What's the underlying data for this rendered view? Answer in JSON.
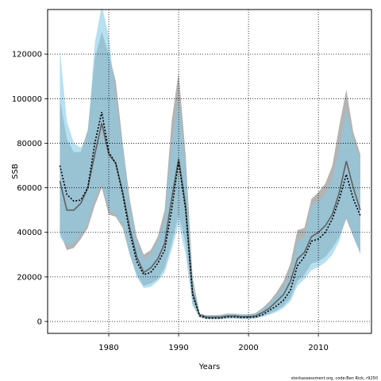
{
  "chart_data": {
    "type": "band-line",
    "xlabel": "Years",
    "ylabel": "SSB",
    "footnote": "stockassessment.org, code:Ben Rick, r9250",
    "x": [
      1973,
      1974,
      1975,
      1976,
      1977,
      1978,
      1979,
      1980,
      1981,
      1982,
      1983,
      1984,
      1985,
      1986,
      1987,
      1988,
      1989,
      1990,
      1991,
      1992,
      1993,
      1994,
      1995,
      1996,
      1997,
      1998,
      1999,
      2000,
      2001,
      2002,
      2003,
      2004,
      2005,
      2006,
      2007,
      2008,
      2009,
      2010,
      2011,
      2012,
      2013,
      2014,
      2015,
      2016
    ],
    "xlim": [
      1971.25,
      2017.6
    ],
    "ylim": [
      -5340,
      140000
    ],
    "xticks": [
      1980,
      1990,
      2000,
      2010
    ],
    "yticks": [
      0,
      20000,
      40000,
      60000,
      80000,
      100000,
      120000
    ],
    "grid": true,
    "bands": [
      {
        "color": "#8c8c8c",
        "opacity": 0.65,
        "upper": [
          100000,
          82000,
          76000,
          76000,
          86000,
          118000,
          130000,
          120000,
          108000,
          80000,
          55000,
          38000,
          30000,
          32000,
          38000,
          50000,
          90000,
          112000,
          75000,
          20000,
          3500,
          2800,
          2800,
          3000,
          3500,
          3500,
          3200,
          3200,
          3800,
          6000,
          9000,
          13000,
          18000,
          26000,
          41000,
          42000,
          55000,
          58000,
          62000,
          70000,
          88000,
          104000,
          85000,
          75000
        ],
        "lower": [
          40000,
          32000,
          33000,
          37000,
          42000,
          52000,
          60000,
          48000,
          47000,
          42000,
          30000,
          21000,
          16000,
          17000,
          19000,
          24000,
          35000,
          48000,
          35000,
          8000,
          2000,
          1200,
          1200,
          1200,
          1500,
          1500,
          1300,
          1300,
          1500,
          2500,
          3500,
          5000,
          7000,
          10500,
          18000,
          21000,
          26000,
          27000,
          29000,
          33000,
          38000,
          46000,
          38000,
          31000
        ]
      },
      {
        "color": "#87cbe8",
        "opacity": 0.6,
        "upper": [
          122000,
          90000,
          80000,
          78000,
          84000,
          125000,
          142000,
          128000,
          100000,
          78000,
          52000,
          36000,
          28000,
          30000,
          36000,
          46000,
          80000,
          100000,
          70000,
          19000,
          3300,
          2600,
          2600,
          2800,
          3200,
          3200,
          3000,
          3000,
          3500,
          5500,
          8000,
          11500,
          15500,
          22000,
          36000,
          38000,
          52000,
          54000,
          57000,
          64000,
          78000,
          95000,
          82000,
          72000
        ],
        "lower": [
          38000,
          34000,
          35000,
          39000,
          44000,
          55000,
          62000,
          50000,
          48000,
          43000,
          30000,
          20000,
          15000,
          15500,
          18000,
          22000,
          32000,
          44000,
          30000,
          7000,
          1800,
          1000,
          1000,
          1000,
          1300,
          1300,
          1100,
          1100,
          1300,
          2000,
          3000,
          4200,
          6000,
          9000,
          16000,
          19000,
          23000,
          24500,
          26500,
          30000,
          36000,
          47000,
          38000,
          30000
        ]
      }
    ],
    "series": [
      {
        "color": "#606060",
        "dash": "none",
        "values": [
          63000,
          50000,
          50000,
          53000,
          60000,
          75000,
          89000,
          75000,
          71000,
          58000,
          42000,
          29000,
          22000,
          24000,
          28000,
          35000,
          55000,
          73000,
          52000,
          13000,
          3000,
          2000,
          2000,
          2000,
          2500,
          2500,
          2200,
          2200,
          2500,
          4000,
          6000,
          9000,
          12000,
          18000,
          28000,
          31000,
          38000,
          40000,
          43000,
          48000,
          58000,
          72000,
          60000,
          50000
        ]
      },
      {
        "color": "#000000",
        "dash": "2 2",
        "values": [
          70000,
          57000,
          54000,
          54500,
          60000,
          80000,
          94000,
          76000,
          71000,
          57000,
          40000,
          27000,
          21000,
          22000,
          26000,
          32000,
          50000,
          72000,
          50000,
          12000,
          2500,
          1500,
          1500,
          1500,
          2000,
          2000,
          1800,
          1800,
          2000,
          3000,
          5000,
          7000,
          9500,
          14000,
          25000,
          29000,
          36000,
          37000,
          40000,
          46000,
          55000,
          66000,
          55000,
          47500
        ]
      }
    ]
  }
}
